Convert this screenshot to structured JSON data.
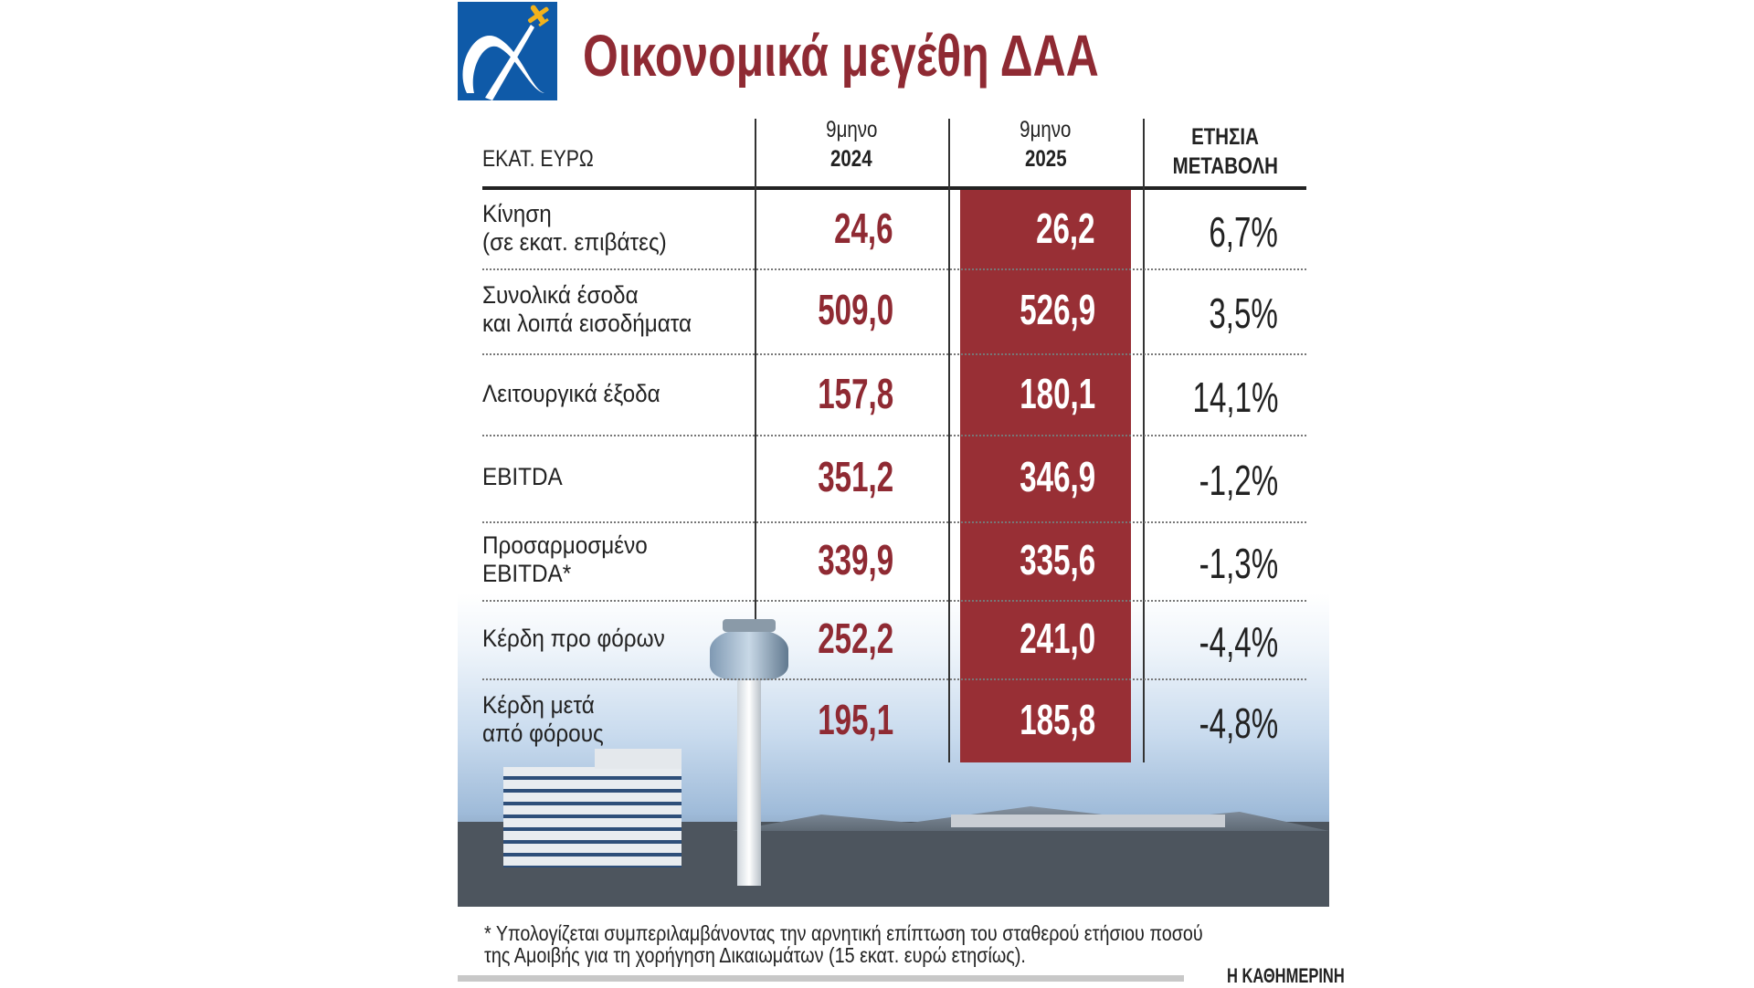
{
  "header": {
    "title": "Οικονομικά μεγέθη ΔΑΑ",
    "logo": "athens-airport-alpha-logo",
    "colors": {
      "title": "#8f2a33",
      "highlight_column": "#982f35",
      "logo_blue": "#0f5aa8",
      "logo_plane": "#f2b21b"
    }
  },
  "table": {
    "unit_label": "ΕΚΑΤ. ΕΥΡΩ",
    "columns": [
      {
        "line1": "9μηνο",
        "line2": "2024"
      },
      {
        "line1": "9μηνο",
        "line2": "2025"
      },
      {
        "line1": "ΕΤΗΣΙΑ",
        "line2": "ΜΕΤΑΒΟΛΗ"
      }
    ],
    "rows": [
      {
        "label1": "Κίνηση",
        "label2": "(σε εκατ. επιβάτες)",
        "v2024": "24,6",
        "v2025": "26,2",
        "change": "6,7%"
      },
      {
        "label1": "Συνολικά έσοδα",
        "label2": "και λοιπά εισοδήματα",
        "v2024": "509,0",
        "v2025": "526,9",
        "change": "3,5%"
      },
      {
        "label1": "Λειτουργικά έξοδα",
        "label2": "",
        "v2024": "157,8",
        "v2025": "180,1",
        "change": "14,1%"
      },
      {
        "label1": "EBITDA",
        "label2": "",
        "v2024": "351,2",
        "v2025": "346,9",
        "change": "-1,2%"
      },
      {
        "label1": "Προσαρμοσμένο",
        "label2": "EBITDA*",
        "v2024": "339,9",
        "v2025": "335,6",
        "change": "-1,3%"
      },
      {
        "label1": "Κέρδη προ φόρων",
        "label2": "",
        "v2024": "252,2",
        "v2025": "241,0",
        "change": "-4,4%"
      },
      {
        "label1": "Κέρδη μετά",
        "label2": "από φόρους",
        "v2024": "195,1",
        "v2025": "185,8",
        "change": "-4,8%"
      }
    ]
  },
  "footer": {
    "note_line1": "* Υπολογίζεται συμπεριλαμβάνοντας την αρνητική επίπτωση του σταθερού ετήσιου ποσού",
    "note_line2": "της Αμοιβής για τη χορήγηση Δικαιωμάτων (15 εκατ. ευρώ ετησίως).",
    "source": "Η ΚΑΘΗΜΕΡΙΝΗ"
  }
}
